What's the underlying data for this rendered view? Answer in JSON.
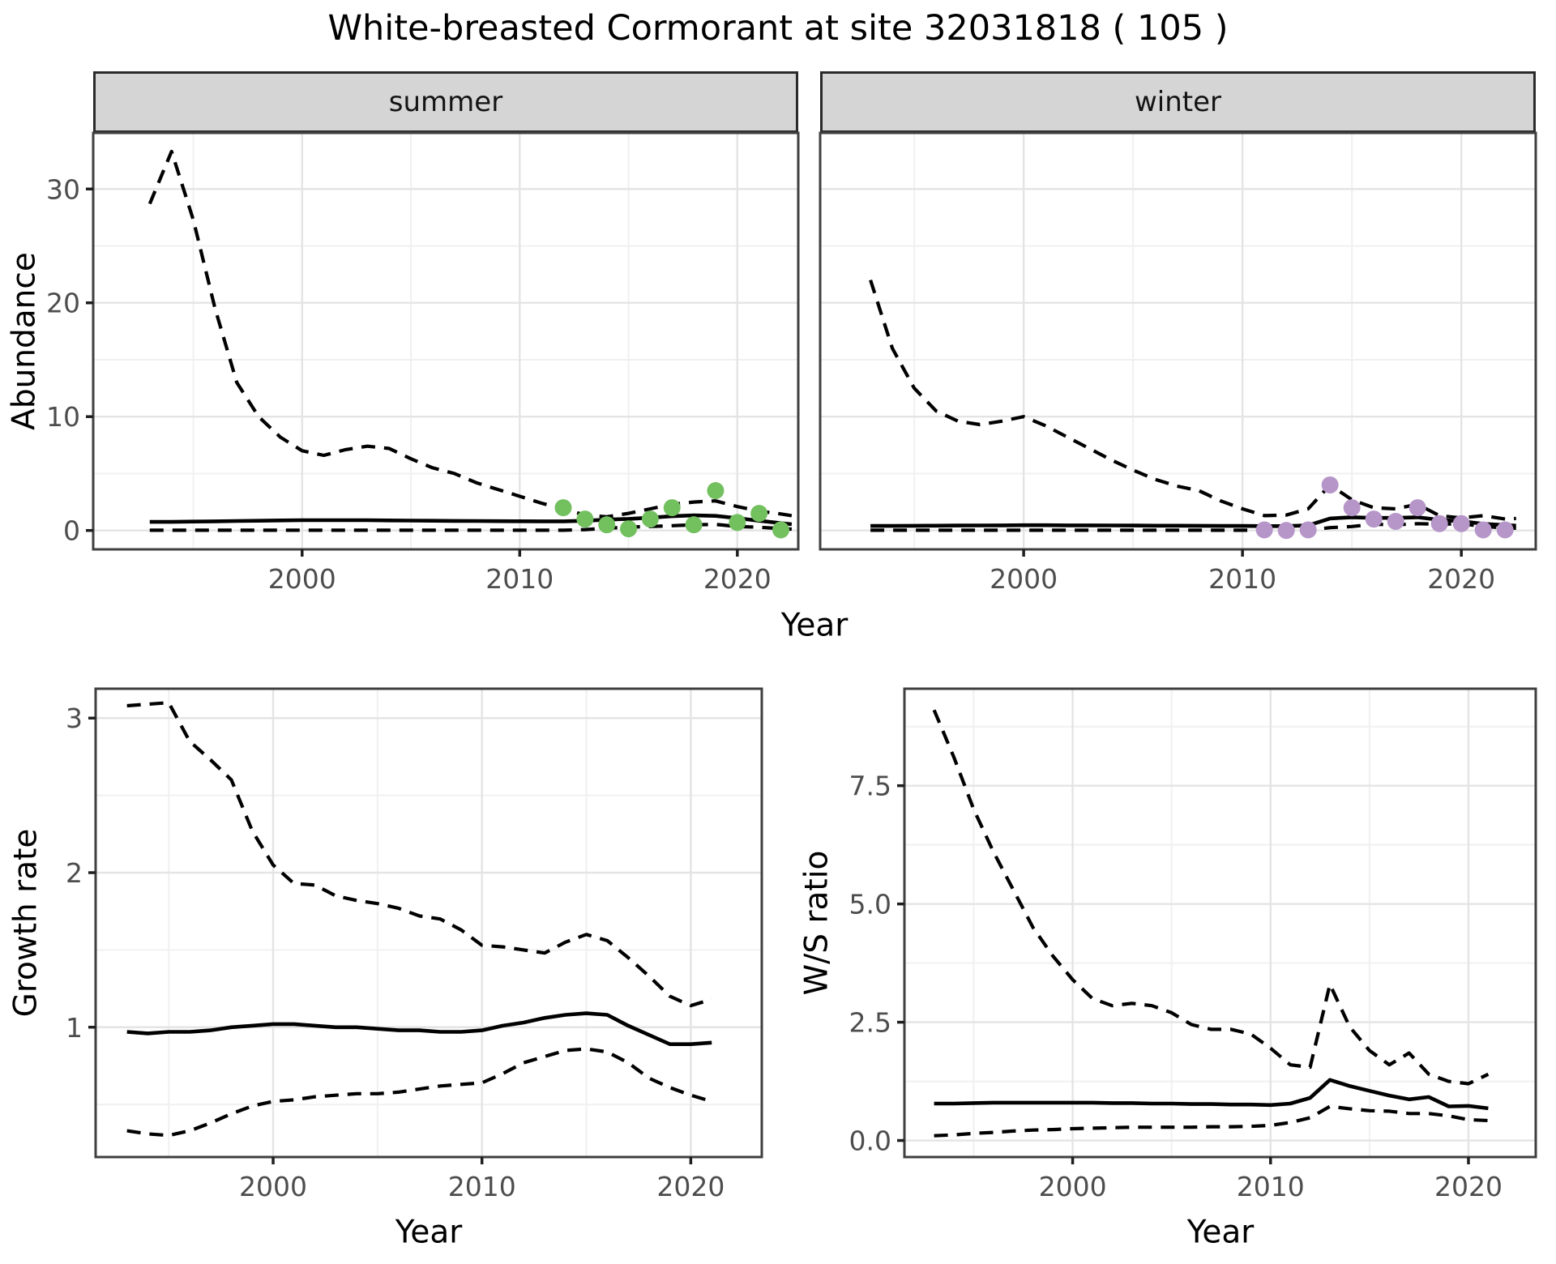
{
  "title": "White-breasted Cormorant at site 32031818 ( 105 )",
  "facets": [
    {
      "label": "summer"
    },
    {
      "label": "winter"
    }
  ],
  "colors": {
    "summer_point": "#73c05f",
    "winter_point": "#b695c9",
    "line": "#000000",
    "strip_bg": "#d5d5d5",
    "panel_border": "#3f3f3f",
    "grid_major": "#e4e4e4",
    "grid_minor": "#f0f0f0",
    "tick_text": "#4d4d4d"
  },
  "chart_data": [
    {
      "type": "line",
      "name": "abundance-summer",
      "facet": "summer",
      "ylabel": "Abundance",
      "xlabel": "Year",
      "x_domain": [
        1990.4,
        2022.8
      ],
      "y_domain": [
        -1.66,
        34.93
      ],
      "x_ticks": [
        2000,
        2010,
        2020
      ],
      "x_tick_labels": [
        "2000",
        "2010",
        "2020"
      ],
      "x_minor": [
        1995,
        2005,
        2015
      ],
      "y_ticks": [
        0,
        10,
        20,
        30
      ],
      "y_tick_labels": [
        "0",
        "10",
        "20",
        "30"
      ],
      "y_minor": [
        5,
        15,
        25
      ],
      "grid": true,
      "series": [
        {
          "name": "upper-ci",
          "style": "dashed",
          "x": [
            1993,
            1994,
            1995,
            1996,
            1997,
            1998,
            1999,
            2000,
            2001,
            2002,
            2003,
            2004,
            2005,
            2006,
            2007,
            2008,
            2009,
            2010,
            2011,
            2012,
            2013,
            2014,
            2015,
            2016,
            2017,
            2018,
            2019,
            2020,
            2021,
            2022,
            2022.5
          ],
          "y": [
            28.7,
            33.3,
            27.3,
            19.5,
            13.0,
            10.0,
            8.2,
            7.0,
            6.6,
            7.1,
            7.4,
            7.2,
            6.3,
            5.5,
            5.0,
            4.2,
            3.6,
            3.0,
            2.4,
            1.9,
            1.35,
            1.2,
            1.5,
            1.9,
            2.3,
            2.5,
            2.6,
            2.1,
            1.7,
            1.45,
            1.3
          ]
        },
        {
          "name": "median",
          "style": "solid",
          "x": [
            1993,
            1994,
            1995,
            1996,
            1997,
            1998,
            1999,
            2000,
            2001,
            2002,
            2003,
            2004,
            2005,
            2006,
            2007,
            2008,
            2009,
            2010,
            2011,
            2012,
            2013,
            2014,
            2015,
            2016,
            2017,
            2018,
            2019,
            2020,
            2021,
            2022,
            2022.5
          ],
          "y": [
            0.75,
            0.75,
            0.78,
            0.8,
            0.83,
            0.85,
            0.88,
            0.9,
            0.9,
            0.9,
            0.9,
            0.88,
            0.87,
            0.85,
            0.84,
            0.83,
            0.82,
            0.81,
            0.8,
            0.8,
            0.85,
            0.95,
            1.02,
            1.12,
            1.25,
            1.32,
            1.28,
            1.08,
            0.85,
            0.65,
            0.55
          ]
        },
        {
          "name": "lower-ci",
          "style": "dashed",
          "x": [
            1993,
            1994,
            1995,
            1996,
            1997,
            1998,
            1999,
            2000,
            2001,
            2002,
            2003,
            2004,
            2005,
            2006,
            2007,
            2008,
            2009,
            2010,
            2011,
            2012,
            2013,
            2014,
            2015,
            2016,
            2017,
            2018,
            2019,
            2020,
            2021,
            2022,
            2022.5
          ],
          "y": [
            0.02,
            0.02,
            0.02,
            0.02,
            0.02,
            0.02,
            0.02,
            0.02,
            0.02,
            0.02,
            0.02,
            0.02,
            0.02,
            0.02,
            0.02,
            0.02,
            0.02,
            0.02,
            0.02,
            0.02,
            0.08,
            0.2,
            0.3,
            0.35,
            0.42,
            0.5,
            0.53,
            0.35,
            0.28,
            0.16,
            0.12
          ]
        },
        {
          "name": "observations",
          "style": "points",
          "color": "#73c05f",
          "x": [
            2012,
            2013,
            2014,
            2015,
            2016,
            2017,
            2018,
            2019,
            2020,
            2021,
            2022
          ],
          "y": [
            2.0,
            1.0,
            0.5,
            0.15,
            1.0,
            2.0,
            0.5,
            3.5,
            0.7,
            1.5,
            0.05
          ]
        }
      ]
    },
    {
      "type": "line",
      "name": "abundance-winter",
      "facet": "winter",
      "ylabel": "",
      "xlabel": "Year",
      "x_domain": [
        1990.7,
        2023.4
      ],
      "y_domain": [
        -1.66,
        34.93
      ],
      "x_ticks": [
        2000,
        2010,
        2020
      ],
      "x_tick_labels": [
        "2000",
        "2010",
        "2020"
      ],
      "x_minor": [
        1995,
        2005,
        2015
      ],
      "y_ticks": [
        0,
        10,
        20,
        30
      ],
      "y_tick_labels": [],
      "y_minor": [
        5,
        15,
        25
      ],
      "grid": true,
      "series": [
        {
          "name": "upper-ci",
          "style": "dashed",
          "x": [
            1993,
            1994,
            1995,
            1996,
            1997,
            1998,
            1999,
            2000,
            2001,
            2002,
            2003,
            2004,
            2005,
            2006,
            2007,
            2008,
            2009,
            2010,
            2011,
            2012,
            2013,
            2014,
            2015,
            2016,
            2017,
            2018,
            2019,
            2020,
            2021,
            2022,
            2022.5
          ],
          "y": [
            22.0,
            16.0,
            12.5,
            10.5,
            9.6,
            9.3,
            9.6,
            10.0,
            9.2,
            8.2,
            7.2,
            6.2,
            5.3,
            4.5,
            3.9,
            3.5,
            2.6,
            1.9,
            1.3,
            1.35,
            1.9,
            4.0,
            2.7,
            2.0,
            1.9,
            2.3,
            1.3,
            1.1,
            1.3,
            1.0,
            1.05
          ]
        },
        {
          "name": "median",
          "style": "solid",
          "x": [
            1993,
            1994,
            1995,
            1996,
            1997,
            1998,
            1999,
            2000,
            2001,
            2002,
            2003,
            2004,
            2005,
            2006,
            2007,
            2008,
            2009,
            2010,
            2011,
            2012,
            2013,
            2014,
            2015,
            2016,
            2017,
            2018,
            2019,
            2020,
            2021,
            2022,
            2022.5
          ],
          "y": [
            0.4,
            0.4,
            0.41,
            0.42,
            0.43,
            0.44,
            0.45,
            0.46,
            0.46,
            0.45,
            0.45,
            0.44,
            0.43,
            0.42,
            0.42,
            0.41,
            0.4,
            0.4,
            0.38,
            0.38,
            0.45,
            1.05,
            1.16,
            1.1,
            1.1,
            1.16,
            0.93,
            0.81,
            0.58,
            0.47,
            0.42
          ]
        },
        {
          "name": "lower-ci",
          "style": "dashed",
          "x": [
            1993,
            1994,
            1995,
            1996,
            1997,
            1998,
            1999,
            2000,
            2001,
            2002,
            2003,
            2004,
            2005,
            2006,
            2007,
            2008,
            2009,
            2010,
            2011,
            2012,
            2013,
            2014,
            2015,
            2016,
            2017,
            2018,
            2019,
            2020,
            2021,
            2022,
            2022.5
          ],
          "y": [
            0.02,
            0.02,
            0.02,
            0.02,
            0.02,
            0.02,
            0.02,
            0.02,
            0.02,
            0.02,
            0.02,
            0.02,
            0.02,
            0.02,
            0.02,
            0.02,
            0.02,
            0.02,
            0.02,
            0.02,
            0.02,
            0.25,
            0.35,
            0.55,
            0.5,
            0.6,
            0.55,
            0.6,
            0.35,
            0.23,
            0.2
          ]
        },
        {
          "name": "observations",
          "style": "points",
          "color": "#b695c9",
          "x": [
            2011,
            2012,
            2013,
            2014,
            2015,
            2016,
            2017,
            2018,
            2019,
            2020,
            2021,
            2022
          ],
          "y": [
            0.05,
            0.0,
            0.05,
            4.0,
            2.0,
            1.0,
            0.8,
            2.0,
            0.6,
            0.6,
            0.05,
            0.05
          ]
        }
      ]
    },
    {
      "type": "line",
      "name": "growth-rate",
      "facet": "",
      "ylabel": "Growth rate",
      "xlabel": "Year",
      "x_domain": [
        1991.5,
        2023.4
      ],
      "y_domain": [
        0.16,
        3.19
      ],
      "x_ticks": [
        2000,
        2010,
        2020
      ],
      "x_tick_labels": [
        "2000",
        "2010",
        "2020"
      ],
      "x_minor": [
        1995,
        2005,
        2015
      ],
      "y_ticks": [
        1,
        2,
        3
      ],
      "y_tick_labels": [
        "1",
        "2",
        "3"
      ],
      "y_minor": [
        0.5,
        1.5,
        2.5
      ],
      "grid": true,
      "series": [
        {
          "name": "upper-ci",
          "style": "dashed",
          "x": [
            1993,
            1994,
            1995,
            1996,
            1997,
            1998,
            1999,
            2000,
            2001,
            2002,
            2003,
            2004,
            2005,
            2006,
            2007,
            2008,
            2009,
            2010,
            2011,
            2012,
            2013,
            2014,
            2015,
            2016,
            2017,
            2018,
            2019,
            2020,
            2021
          ],
          "y": [
            3.08,
            3.09,
            3.1,
            2.85,
            2.73,
            2.6,
            2.27,
            2.05,
            1.93,
            1.92,
            1.85,
            1.82,
            1.8,
            1.77,
            1.72,
            1.7,
            1.63,
            1.53,
            1.52,
            1.5,
            1.48,
            1.55,
            1.6,
            1.56,
            1.45,
            1.33,
            1.2,
            1.14,
            1.18
          ]
        },
        {
          "name": "median",
          "style": "solid",
          "x": [
            1993,
            1994,
            1995,
            1996,
            1997,
            1998,
            1999,
            2000,
            2001,
            2002,
            2003,
            2004,
            2005,
            2006,
            2007,
            2008,
            2009,
            2010,
            2011,
            2012,
            2013,
            2014,
            2015,
            2016,
            2017,
            2018,
            2019,
            2020,
            2021
          ],
          "y": [
            0.97,
            0.96,
            0.97,
            0.97,
            0.98,
            1.0,
            1.01,
            1.02,
            1.02,
            1.01,
            1.0,
            1.0,
            0.99,
            0.98,
            0.98,
            0.97,
            0.97,
            0.98,
            1.01,
            1.03,
            1.06,
            1.08,
            1.09,
            1.08,
            1.01,
            0.95,
            0.89,
            0.89,
            0.9
          ]
        },
        {
          "name": "lower-ci",
          "style": "dashed",
          "x": [
            1993,
            1994,
            1995,
            1996,
            1997,
            1998,
            1999,
            2000,
            2001,
            2002,
            2003,
            2004,
            2005,
            2006,
            2007,
            2008,
            2009,
            2010,
            2011,
            2012,
            2013,
            2014,
            2015,
            2016,
            2017,
            2018,
            2019,
            2020,
            2021
          ],
          "y": [
            0.33,
            0.31,
            0.3,
            0.33,
            0.38,
            0.44,
            0.49,
            0.52,
            0.53,
            0.55,
            0.56,
            0.57,
            0.57,
            0.58,
            0.6,
            0.62,
            0.63,
            0.64,
            0.7,
            0.77,
            0.81,
            0.85,
            0.86,
            0.84,
            0.77,
            0.67,
            0.61,
            0.56,
            0.52
          ]
        }
      ]
    },
    {
      "type": "line",
      "name": "ws-ratio",
      "facet": "",
      "ylabel": "W/S ratio",
      "xlabel": "Year",
      "x_domain": [
        1991.5,
        2023.4
      ],
      "y_domain": [
        -0.35,
        9.55
      ],
      "x_ticks": [
        2000,
        2010,
        2020
      ],
      "x_tick_labels": [
        "2000",
        "2010",
        "2020"
      ],
      "x_minor": [
        1995,
        2005,
        2015
      ],
      "y_ticks": [
        0,
        2.5,
        5,
        7.5
      ],
      "y_tick_labels": [
        "0.0",
        "2.5",
        "5.0",
        "7.5"
      ],
      "y_minor": [
        1.25,
        3.75,
        6.25,
        8.75
      ],
      "grid": true,
      "series": [
        {
          "name": "upper-ci",
          "style": "dashed",
          "x": [
            1993,
            1994,
            1995,
            1996,
            1997,
            1998,
            1999,
            2000,
            2001,
            2002,
            2003,
            2004,
            2005,
            2006,
            2007,
            2008,
            2009,
            2010,
            2011,
            2012,
            2013,
            2014,
            2015,
            2016,
            2017,
            2018,
            2019,
            2020,
            2021
          ],
          "y": [
            9.1,
            8.1,
            7.0,
            6.1,
            5.3,
            4.5,
            3.9,
            3.4,
            3.0,
            2.85,
            2.9,
            2.85,
            2.7,
            2.45,
            2.35,
            2.35,
            2.25,
            1.95,
            1.6,
            1.55,
            3.3,
            2.4,
            1.9,
            1.6,
            1.85,
            1.4,
            1.25,
            1.2,
            1.4
          ]
        },
        {
          "name": "median",
          "style": "solid",
          "x": [
            1993,
            1994,
            1995,
            1996,
            1997,
            1998,
            1999,
            2000,
            2001,
            2002,
            2003,
            2004,
            2005,
            2006,
            2007,
            2008,
            2009,
            2010,
            2011,
            2012,
            2013,
            2014,
            2015,
            2016,
            2017,
            2018,
            2019,
            2020,
            2021
          ],
          "y": [
            0.78,
            0.78,
            0.79,
            0.8,
            0.8,
            0.8,
            0.8,
            0.8,
            0.8,
            0.79,
            0.79,
            0.78,
            0.78,
            0.77,
            0.77,
            0.76,
            0.76,
            0.75,
            0.78,
            0.9,
            1.28,
            1.15,
            1.05,
            0.95,
            0.87,
            0.92,
            0.72,
            0.73,
            0.68
          ]
        },
        {
          "name": "lower-ci",
          "style": "dashed",
          "x": [
            1993,
            1994,
            1995,
            1996,
            1997,
            1998,
            1999,
            2000,
            2001,
            2002,
            2003,
            2004,
            2005,
            2006,
            2007,
            2008,
            2009,
            2010,
            2011,
            2012,
            2013,
            2014,
            2015,
            2016,
            2017,
            2018,
            2019,
            2020,
            2021
          ],
          "y": [
            0.1,
            0.12,
            0.15,
            0.17,
            0.2,
            0.22,
            0.23,
            0.25,
            0.26,
            0.27,
            0.28,
            0.28,
            0.28,
            0.28,
            0.29,
            0.29,
            0.3,
            0.32,
            0.38,
            0.48,
            0.72,
            0.67,
            0.63,
            0.62,
            0.57,
            0.57,
            0.52,
            0.44,
            0.42
          ]
        }
      ]
    }
  ]
}
